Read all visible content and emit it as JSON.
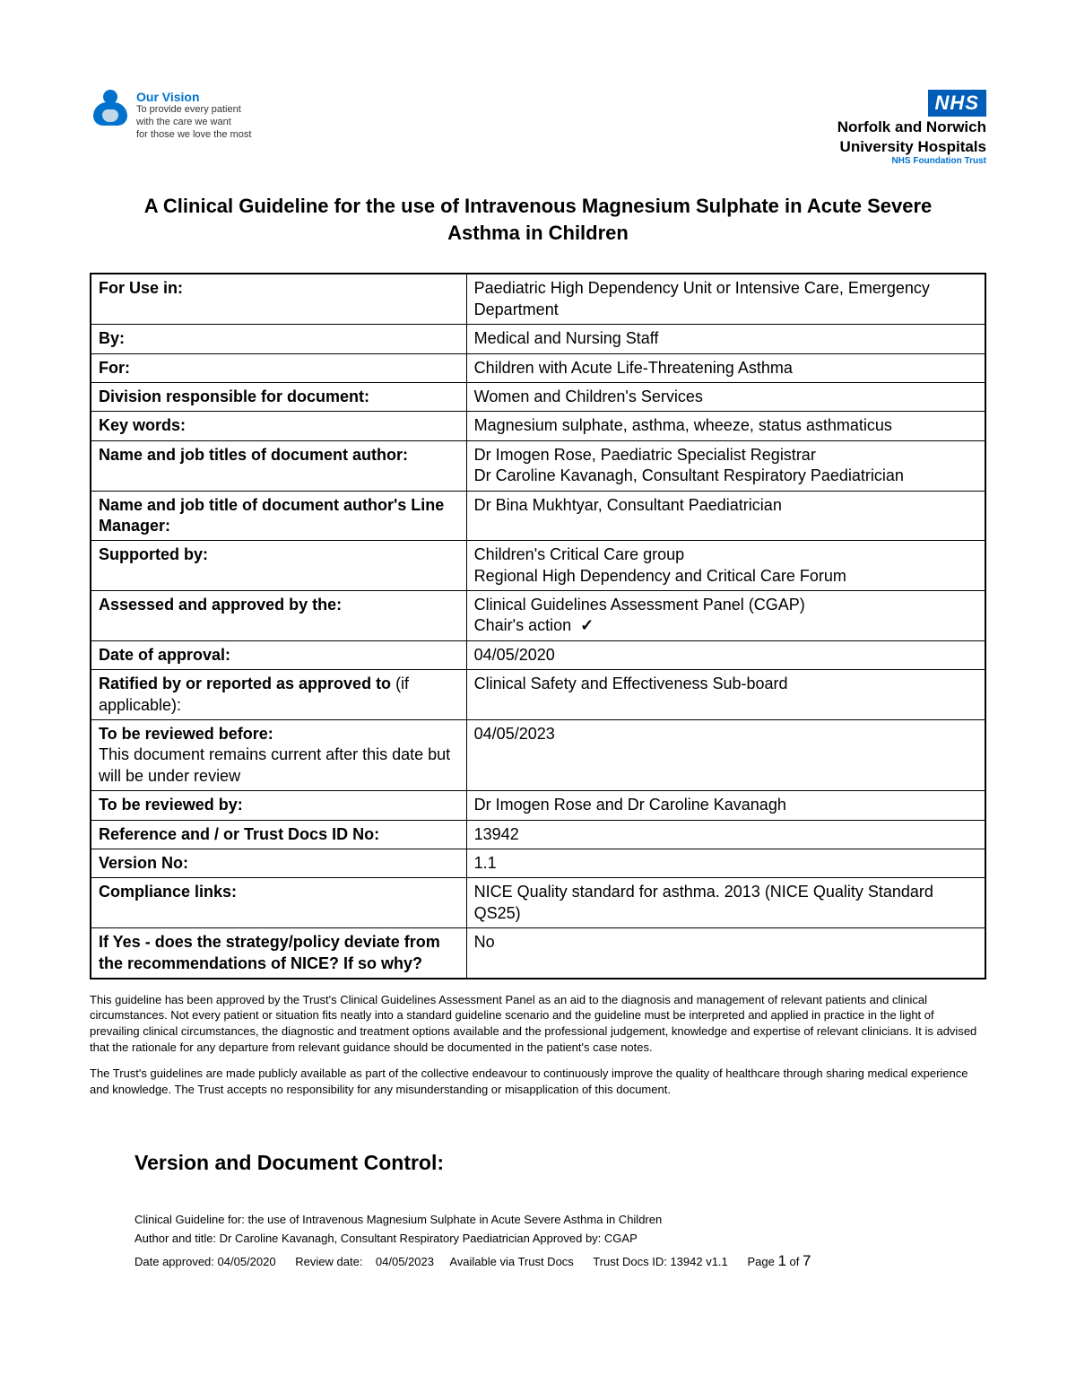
{
  "header": {
    "vision_title": "Our Vision",
    "vision_line1": "To provide every patient",
    "vision_line2": "with the care we want",
    "vision_line3": "for those we love the most",
    "nhs_logo": "NHS",
    "nhs_line1": "Norfolk and Norwich",
    "nhs_line2": "University Hospitals",
    "nhs_line3": "NHS Foundation Trust"
  },
  "title": "A Clinical Guideline for the use of Intravenous Magnesium Sulphate in Acute Severe Asthma in Children",
  "table": {
    "for_use_in": {
      "label": "For Use in:",
      "value": "Paediatric High Dependency Unit or Intensive Care, Emergency Department"
    },
    "by": {
      "label": "By:",
      "value": "Medical and Nursing Staff"
    },
    "for": {
      "label": "For:",
      "value": "Children with Acute Life-Threatening Asthma"
    },
    "division": {
      "label": "Division responsible for document:",
      "value": "Women and Children's Services"
    },
    "keywords": {
      "label": "Key words:",
      "value": "Magnesium sulphate, asthma, wheeze, status asthmaticus"
    },
    "author": {
      "label": "Name and job titles of document author:",
      "value": "Dr Imogen Rose, Paediatric Specialist Registrar\nDr Caroline Kavanagh, Consultant Respiratory Paediatrician"
    },
    "line_manager": {
      "label": "Name and job title of document author's Line Manager:",
      "value": "Dr Bina Mukhtyar, Consultant Paediatrician"
    },
    "supported": {
      "label": "Supported by:",
      "value": "Children's Critical Care group\nRegional High Dependency and Critical Care Forum"
    },
    "assessed": {
      "label": "Assessed and approved by the:",
      "value_line1": "Clinical Guidelines Assessment Panel (CGAP)",
      "value_line2": "Chair's action",
      "check": "✓"
    },
    "date_approval": {
      "label": "Date of approval:",
      "value": "04/05/2020"
    },
    "ratified": {
      "label_bold": "Ratified by or reported as approved to",
      "label_plain": " (if applicable):",
      "value": "Clinical Safety and Effectiveness Sub-board"
    },
    "review_before": {
      "label_bold": "To be reviewed before:",
      "label_plain": "This document remains current after this date but will be under review",
      "value": "04/05/2023"
    },
    "reviewed_by": {
      "label": "To be reviewed by:",
      "value": "Dr Imogen Rose and Dr Caroline Kavanagh"
    },
    "reference": {
      "label": "Reference and / or Trust Docs ID No:",
      "value": "13942"
    },
    "version": {
      "label": "Version No:",
      "value": "1.1"
    },
    "compliance": {
      "label": "Compliance links:",
      "value": "NICE Quality standard for asthma. 2013 (NICE Quality Standard QS25)"
    },
    "deviate": {
      "label": "If Yes - does the strategy/policy deviate from the recommendations of NICE?  If so why?",
      "value": "No"
    }
  },
  "disclaimer": {
    "p1": "This guideline has been approved by the Trust's Clinical Guidelines Assessment Panel as an aid to the diagnosis and management of relevant patients and clinical circumstances. Not every patient or situation fits neatly into a standard guideline scenario and the guideline must be interpreted and applied in practice in the light of prevailing clinical circumstances, the diagnostic and treatment options available and the professional judgement, knowledge and expertise of relevant clinicians. It is advised that the rationale for any departure from relevant guidance should be documented in the patient's case notes.",
    "p2": "The Trust's guidelines are made publicly available as part of the collective endeavour to continuously improve the quality of healthcare through sharing medical experience and knowledge. The Trust accepts no responsibility for any misunderstanding or misapplication of this document."
  },
  "section_heading": "Version and Document Control:",
  "footer": {
    "line1": "Clinical Guideline for: the use of Intravenous Magnesium Sulphate in Acute Severe Asthma in Children",
    "line2": "Author and title:   Dr Caroline Kavanagh, Consultant Respiratory Paediatrician    Approved by: CGAP",
    "date_approved_label": "Date approved:",
    "date_approved": "04/05/2020",
    "review_label": "Review date:",
    "review_date": "04/05/2023",
    "avail": "Available via Trust Docs",
    "trust_id": "Trust Docs ID: 13942 v1.1",
    "page_label": "Page",
    "page_current": "1",
    "page_of": "of",
    "page_total": "7"
  },
  "colors": {
    "nhs_blue": "#005eb8",
    "link_blue": "#0072ce",
    "text": "#000000",
    "border": "#000000"
  }
}
